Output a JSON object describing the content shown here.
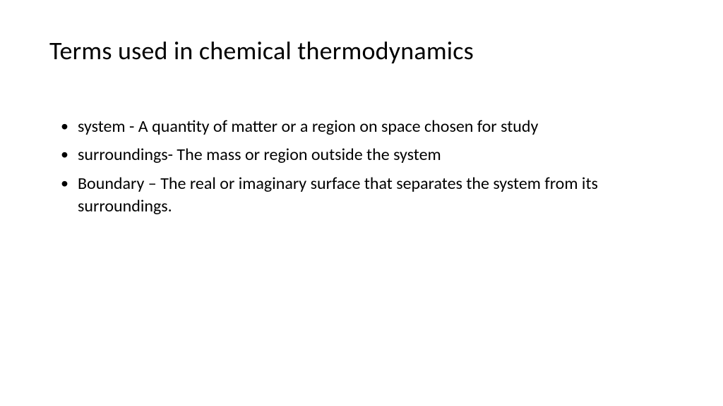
{
  "slide": {
    "title": "Terms used in chemical thermodynamics",
    "title_fontsize": 36,
    "title_color": "#000000",
    "body_fontsize": 24,
    "body_color": "#000000",
    "background_color": "#ffffff",
    "bullets": [
      "system   -  A quantity of matter or a region on space chosen for study",
      "surroundings- The mass or region outside the system",
      " Boundary – The real or imaginary surface that separates the system from its surroundings."
    ]
  }
}
